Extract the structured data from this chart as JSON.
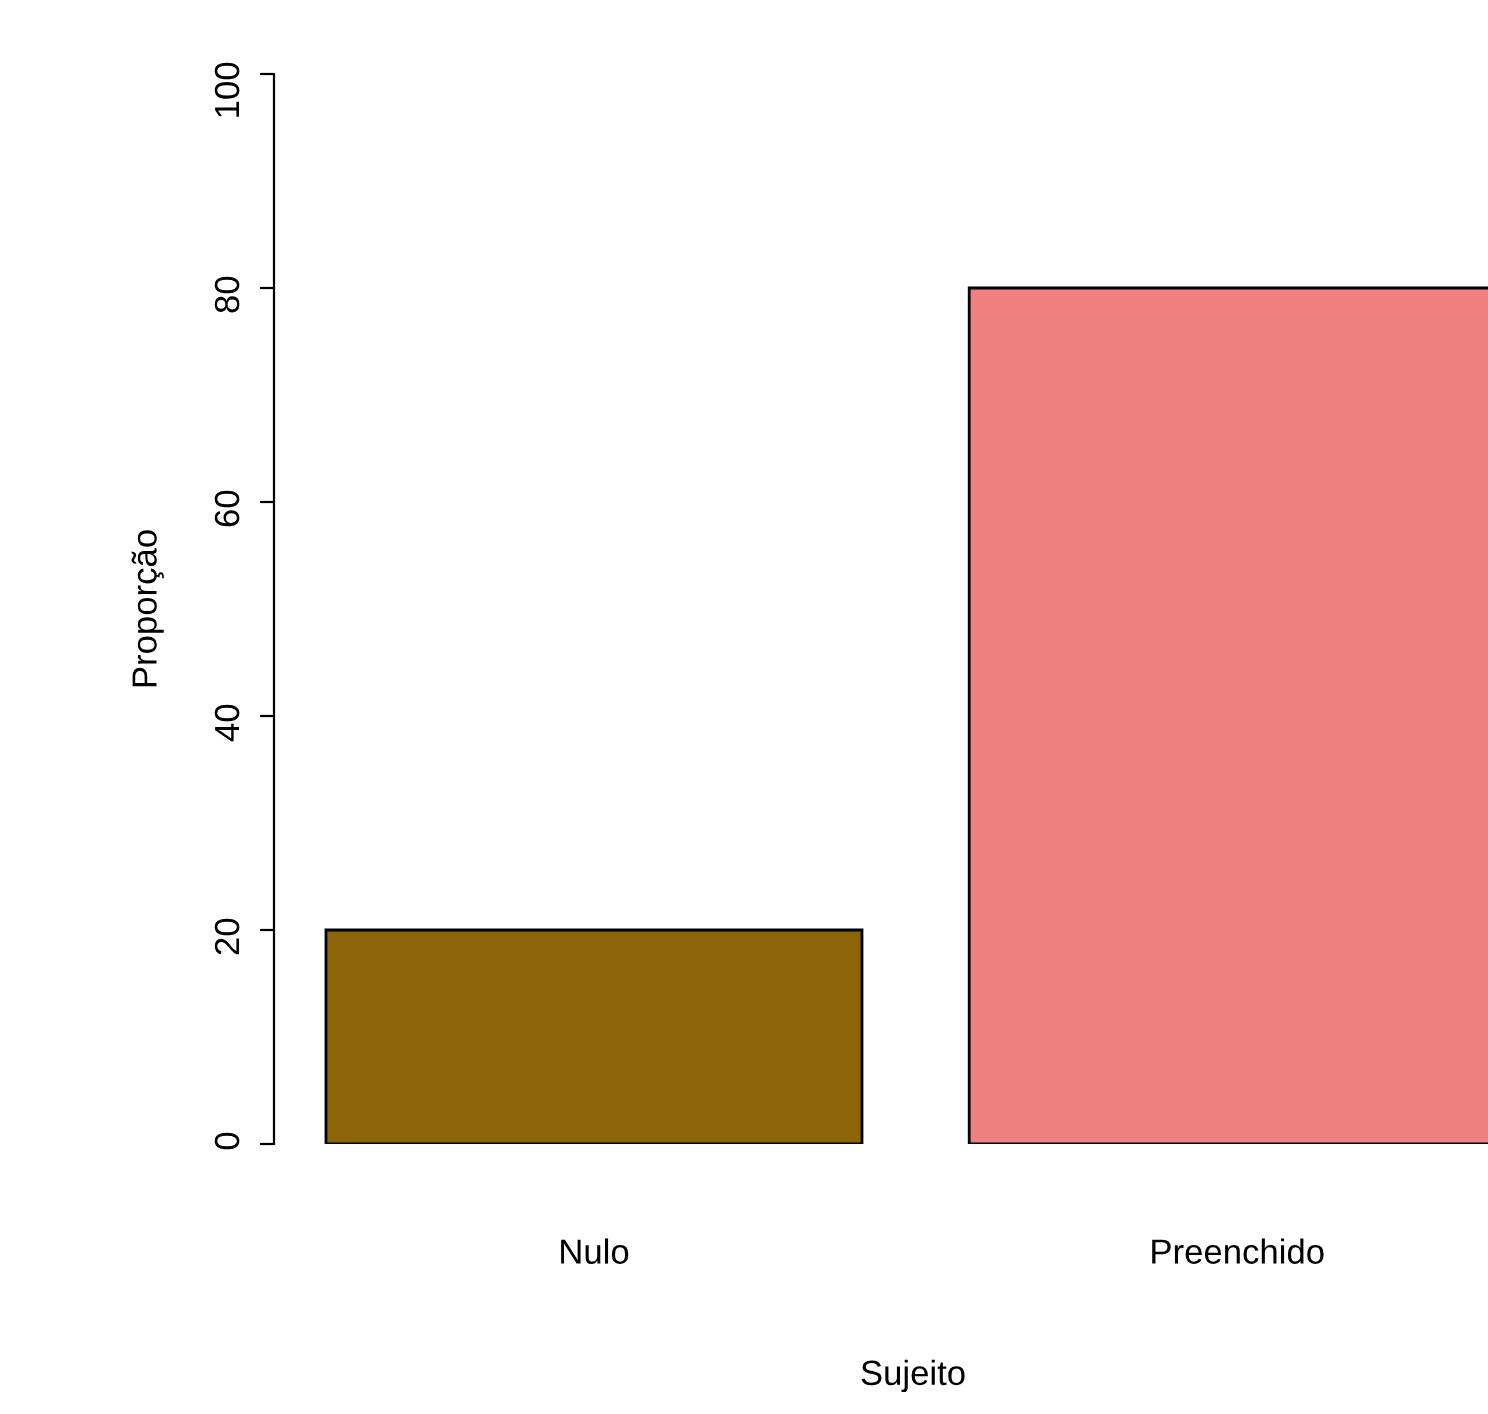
{
  "chart_data": {
    "type": "bar",
    "xlabel": "Sujeito",
    "ylabel": "Proporção",
    "categories": [
      "Nulo",
      "Preenchido"
    ],
    "values": [
      20,
      80
    ],
    "colors": [
      "#8b6508",
      "#f08080"
    ],
    "ylim": [
      0,
      100
    ],
    "yticks": [
      0,
      20,
      40,
      60,
      80,
      100
    ],
    "grid": false
  }
}
